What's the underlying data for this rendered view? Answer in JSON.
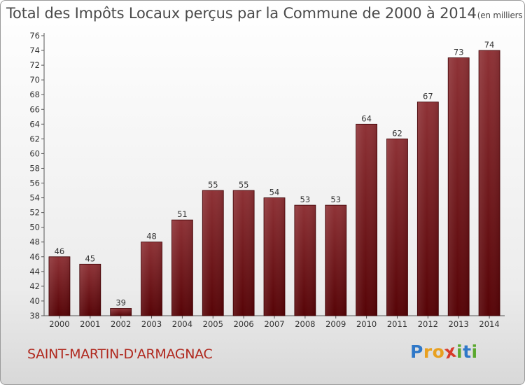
{
  "header": {
    "title": "Total des Impôts Locaux perçus par la Commune de 2000 à 2014",
    "unit": "(en milliers d'€)"
  },
  "footer": {
    "commune": "SAINT-MARTIN-D'ARMAGNAC",
    "logo_letters": [
      "P",
      "r",
      "o",
      "x",
      "i",
      "t",
      "i"
    ],
    "logo_colors": [
      "#2f78c8",
      "#e8a020",
      "#e8a020",
      "#d83a2a",
      "#5aa82e",
      "#2f78c8",
      "#5aa82e"
    ]
  },
  "chart_data": {
    "type": "bar",
    "title": "Total des Impôts Locaux perçus par la Commune de 2000 à 2014",
    "xlabel": "",
    "ylabel": "",
    "categories": [
      "2000",
      "2001",
      "2002",
      "2003",
      "2004",
      "2005",
      "2006",
      "2007",
      "2008",
      "2009",
      "2010",
      "2011",
      "2012",
      "2013",
      "2014"
    ],
    "values": [
      46,
      45,
      39,
      48,
      51,
      55,
      55,
      54,
      53,
      53,
      64,
      62,
      67,
      73,
      74
    ],
    "ylim": [
      38,
      76
    ],
    "yticks": [
      38,
      40,
      42,
      44,
      46,
      48,
      50,
      52,
      54,
      56,
      58,
      60,
      62,
      64,
      66,
      68,
      70,
      72,
      74,
      76
    ],
    "grid": false,
    "bar_color": "#7a1418"
  }
}
